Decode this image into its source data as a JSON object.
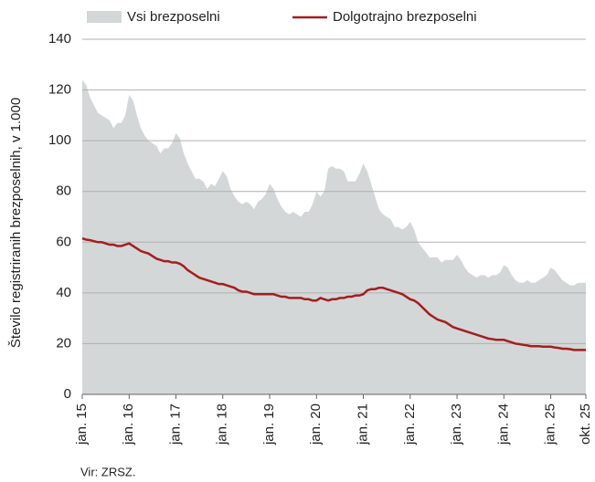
{
  "chart_data": {
    "type": "area-line",
    "ylabel": "Število registriranih brezposelnih, v 1.000",
    "source": "Vir: ZRSZ.",
    "categories": [
      "jan. 15",
      null,
      null,
      null,
      null,
      null,
      null,
      null,
      null,
      null,
      null,
      null,
      "jan. 16",
      null,
      null,
      null,
      null,
      null,
      null,
      null,
      null,
      null,
      null,
      null,
      "jan. 17",
      null,
      null,
      null,
      null,
      null,
      null,
      null,
      null,
      null,
      null,
      null,
      "jan. 18",
      null,
      null,
      null,
      null,
      null,
      null,
      null,
      null,
      null,
      null,
      null,
      "jan. 19",
      null,
      null,
      null,
      null,
      null,
      null,
      null,
      null,
      null,
      null,
      null,
      "jan. 20",
      null,
      null,
      null,
      null,
      null,
      null,
      null,
      null,
      null,
      null,
      null,
      "jan. 21",
      null,
      null,
      null,
      null,
      null,
      null,
      null,
      null,
      null,
      null,
      null,
      "jan. 22",
      null,
      null,
      null,
      null,
      null,
      null,
      null,
      null,
      null,
      null,
      null,
      "jan. 23",
      null,
      null,
      null,
      null,
      null,
      null,
      null,
      null,
      null,
      null,
      null,
      "jan. 24",
      null,
      null,
      null,
      null,
      null,
      null,
      null,
      null,
      null,
      null,
      null,
      "jan. 25",
      null,
      null,
      null,
      null,
      null,
      null,
      null,
      null,
      "okt. 25"
    ],
    "series": [
      {
        "name": "Vsi brezposelni",
        "color": "#d3d7d8",
        "kind": "area",
        "values": [
          124,
          122,
          117,
          114,
          111,
          110,
          109,
          108,
          105,
          107,
          107,
          110,
          118,
          116,
          110,
          105,
          102,
          100,
          99,
          98,
          95,
          97,
          97,
          99,
          103,
          101,
          95,
          91,
          88,
          85,
          85,
          84,
          81,
          83,
          82,
          85,
          88,
          86,
          81,
          78,
          76,
          75,
          76,
          75,
          73,
          76,
          77,
          79,
          83,
          81,
          77,
          74,
          72,
          71,
          72,
          71,
          70,
          72,
          72,
          75,
          80,
          78,
          80,
          89,
          90,
          89,
          89,
          88,
          84,
          84,
          84,
          87,
          91,
          88,
          83,
          78,
          73,
          71,
          70,
          69,
          66,
          66,
          65,
          66,
          68,
          65,
          60,
          58,
          56,
          54,
          54,
          54,
          52,
          53,
          53,
          53,
          55,
          53,
          50,
          48,
          47,
          46,
          47,
          47,
          46,
          47,
          47,
          48,
          51,
          50,
          47,
          45,
          44,
          44,
          45,
          44,
          44,
          45,
          46,
          47,
          50,
          49,
          47,
          45,
          44,
          43,
          43,
          44,
          44,
          44
        ]
      },
      {
        "name": "Dolgotrajno brezposelni",
        "color": "#a51d1f",
        "kind": "line",
        "values": [
          61.5,
          61,
          60.8,
          60.4,
          60,
          60,
          59.5,
          59,
          59,
          58.5,
          58.5,
          59,
          59.5,
          58.5,
          57.5,
          56.5,
          56,
          55.5,
          54.5,
          53.5,
          53,
          52.5,
          52.5,
          52,
          52,
          51.5,
          50.5,
          49,
          48,
          47,
          46,
          45.5,
          45,
          44.5,
          44,
          43.5,
          43.5,
          43,
          42.5,
          42,
          41,
          40.5,
          40.5,
          40,
          39.5,
          39.5,
          39.5,
          39.5,
          39.5,
          39.5,
          39,
          38.5,
          38.5,
          38,
          38,
          38,
          38,
          37.5,
          37.5,
          37,
          37,
          38,
          37.5,
          37,
          37.5,
          37.5,
          38,
          38,
          38.5,
          38.5,
          39,
          39,
          39.5,
          41,
          41.5,
          41.5,
          42,
          42,
          41.5,
          41,
          40.5,
          40,
          39.5,
          38.5,
          37.5,
          37,
          36,
          34.5,
          33,
          31.5,
          30.5,
          29.5,
          29,
          28.5,
          27.5,
          26.5,
          26,
          25.5,
          25,
          24.5,
          24,
          23.5,
          23,
          22.5,
          22,
          21.8,
          21.5,
          21.5,
          21.5,
          21,
          20.5,
          20,
          19.8,
          19.5,
          19.3,
          19,
          19,
          19,
          18.8,
          18.8,
          18.8,
          18.5,
          18.3,
          18,
          18,
          17.8,
          17.5,
          17.5,
          17.5,
          17.5
        ]
      }
    ],
    "ylim": [
      0,
      140
    ],
    "yticks": [
      0,
      20,
      40,
      60,
      80,
      100,
      120,
      140
    ],
    "grid": true
  }
}
